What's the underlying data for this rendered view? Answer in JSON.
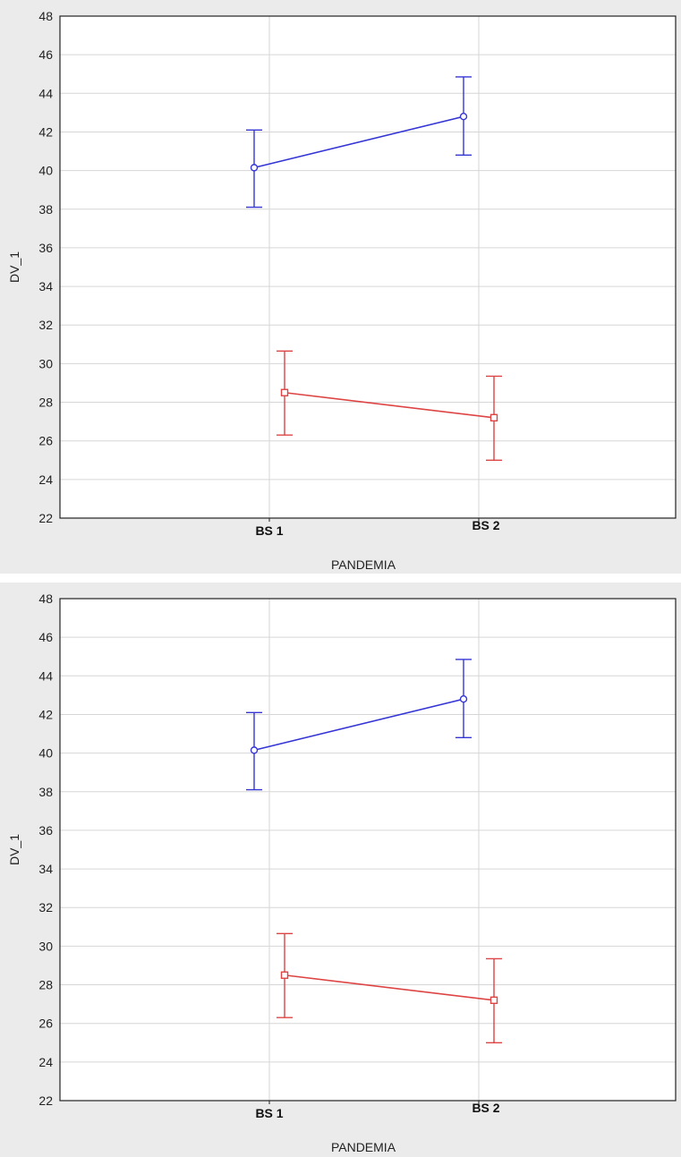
{
  "chart_data": [
    {
      "type": "line",
      "title": "",
      "xlabel": "PANDEMIA",
      "ylabel": "DV_1",
      "ylim": [
        22,
        48
      ],
      "yticks": [
        "22",
        "24",
        "26",
        "28",
        "30",
        "32",
        "34",
        "36",
        "38",
        "40",
        "42",
        "44",
        "46",
        "48"
      ],
      "categories": [
        "BS 1",
        "BS 2"
      ],
      "grid": true,
      "legend": "none",
      "error_bars": true,
      "series": [
        {
          "color": "#3535d6",
          "marker": "circle",
          "values": [
            40.15,
            42.8
          ],
          "error_lower": [
            38.1,
            40.8
          ],
          "error_upper": [
            42.1,
            44.85
          ]
        },
        {
          "color": "#de4444",
          "marker": "square",
          "values": [
            28.5,
            27.2
          ],
          "error_lower": [
            26.3,
            25.0
          ],
          "error_upper": [
            30.65,
            29.35
          ]
        }
      ]
    },
    {
      "type": "line",
      "title": "",
      "xlabel": "PANDEMIA",
      "ylabel": "DV_1",
      "ylim": [
        22,
        48
      ],
      "yticks": [
        "22",
        "24",
        "26",
        "28",
        "30",
        "32",
        "34",
        "36",
        "38",
        "40",
        "42",
        "44",
        "46",
        "48"
      ],
      "categories": [
        "BS 1",
        "BS 2"
      ],
      "grid": true,
      "legend": "none",
      "error_bars": true,
      "series": [
        {
          "color": "#3535d6",
          "marker": "circle",
          "values": [
            40.15,
            42.8
          ],
          "error_lower": [
            38.1,
            40.8
          ],
          "error_upper": [
            42.1,
            44.85
          ]
        },
        {
          "color": "#de4444",
          "marker": "square",
          "values": [
            28.5,
            27.2
          ],
          "error_lower": [
            26.3,
            25.0
          ],
          "error_upper": [
            30.65,
            29.35
          ]
        }
      ]
    }
  ]
}
